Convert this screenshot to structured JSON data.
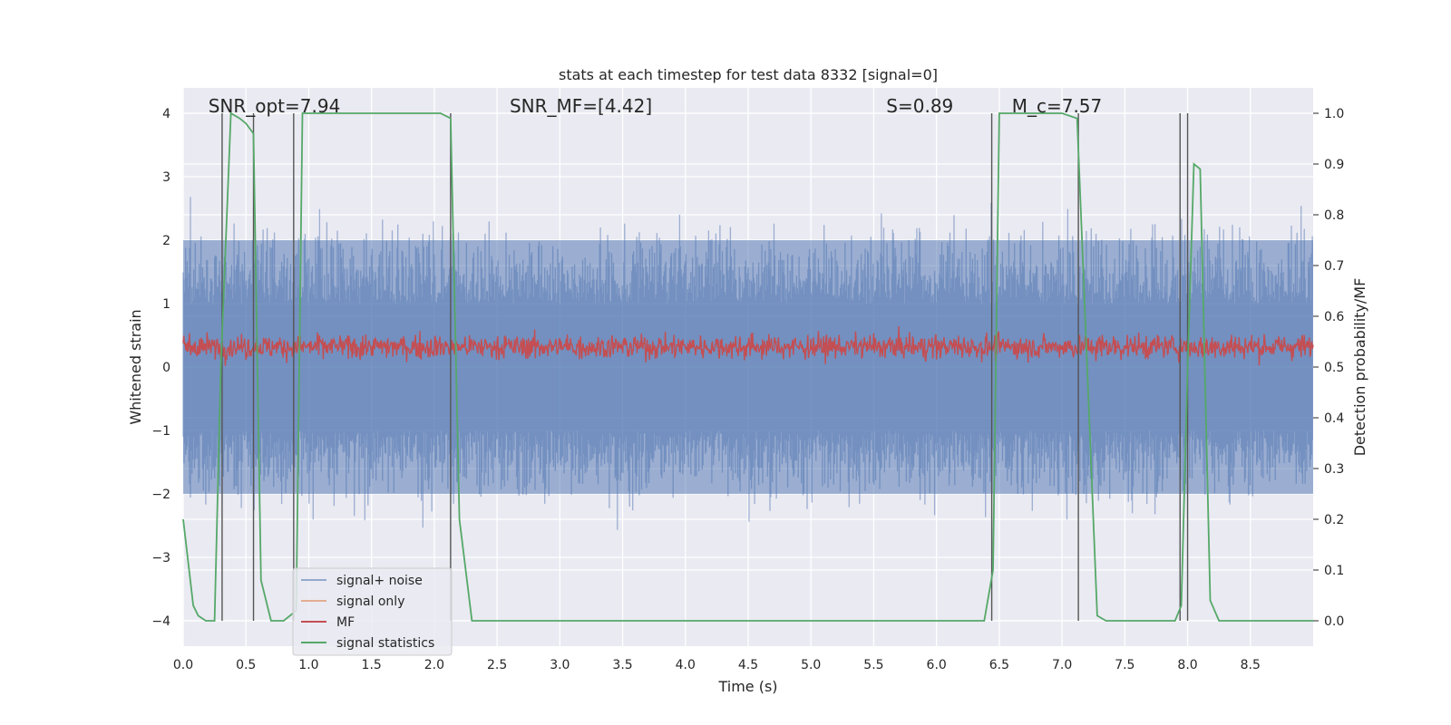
{
  "chart_data": {
    "type": "line",
    "title": "stats at each timestep for test data 8332 [signal=0]",
    "xlabel": "Time (s)",
    "ylabel_left": "Whitened strain",
    "ylabel_right": "Detection probability/MF",
    "xlim": [
      0.0,
      9.0
    ],
    "ylim_left": [
      -4.4,
      4.4
    ],
    "ylim_right": [
      -0.05,
      1.05
    ],
    "x_ticks": [
      "0.0",
      "0.5",
      "1.0",
      "1.5",
      "2.0",
      "2.5",
      "3.0",
      "3.5",
      "4.0",
      "4.5",
      "5.0",
      "5.5",
      "6.0",
      "6.5",
      "7.0",
      "7.5",
      "8.0",
      "8.5"
    ],
    "y_ticks_left": [
      "4",
      "3",
      "2",
      "1",
      "0",
      "−1",
      "−2",
      "−3",
      "−4"
    ],
    "y_ticks_right": [
      "1.0",
      "0.9",
      "0.8",
      "0.7",
      "0.6",
      "0.5",
      "0.4",
      "0.3",
      "0.2",
      "0.1",
      "0.0"
    ],
    "grid": true,
    "legend_position": "lower-left",
    "annotations": [
      {
        "text": "SNR_opt=7.94",
        "x": 0.2
      },
      {
        "text": "SNR_MF=[4.42]",
        "x": 2.6
      },
      {
        "text": "S=0.89",
        "x": 5.6
      },
      {
        "text": "M_c=7.57",
        "x": 6.6
      }
    ],
    "series": [
      {
        "name": "signal+ noise",
        "color": "#4c72b0",
        "axis": "left",
        "style": "noisy-band",
        "typical_range": [
          -2.0,
          2.0
        ],
        "peak_range": [
          -3.6,
          3.6
        ]
      },
      {
        "name": "signal only",
        "color": "#dd8452",
        "axis": "left",
        "values": [
          0
        ]
      },
      {
        "name": "MF",
        "color": "#c44e52",
        "axis": "right",
        "style": "noisy-band",
        "typical_range": [
          0.51,
          0.57
        ],
        "peak_range": [
          0.5,
          0.62
        ]
      },
      {
        "name": "signal statistics",
        "color": "#55a868",
        "axis": "right",
        "x": [
          0.0,
          0.08,
          0.12,
          0.18,
          0.25,
          0.3,
          0.38,
          0.45,
          0.5,
          0.56,
          0.62,
          0.7,
          0.8,
          0.9,
          0.95,
          1.0,
          1.5,
          2.0,
          2.05,
          2.13,
          2.2,
          2.3,
          2.5,
          3.0,
          4.0,
          5.0,
          6.0,
          6.38,
          6.45,
          6.5,
          6.6,
          6.8,
          7.0,
          7.12,
          7.2,
          7.28,
          7.35,
          7.5,
          7.9,
          7.95,
          8.0,
          8.05,
          8.1,
          8.18,
          8.25,
          8.5,
          9.0
        ],
        "y": [
          0.2,
          0.03,
          0.01,
          0.0,
          0.0,
          0.5,
          1.0,
          0.99,
          0.98,
          0.96,
          0.08,
          0.0,
          0.0,
          0.02,
          1.0,
          1.0,
          1.0,
          1.0,
          1.0,
          0.99,
          0.2,
          0.0,
          0.0,
          0.0,
          0.0,
          0.0,
          0.0,
          0.0,
          0.1,
          1.0,
          1.0,
          1.0,
          1.0,
          0.99,
          0.5,
          0.01,
          0.0,
          0.0,
          0.0,
          0.03,
          0.5,
          0.9,
          0.89,
          0.04,
          0.0,
          0.0,
          0.0
        ]
      }
    ],
    "vertical_markers_x": [
      0.31,
      0.56,
      0.88,
      2.13,
      6.44,
      7.13,
      7.94,
      8.0
    ]
  }
}
